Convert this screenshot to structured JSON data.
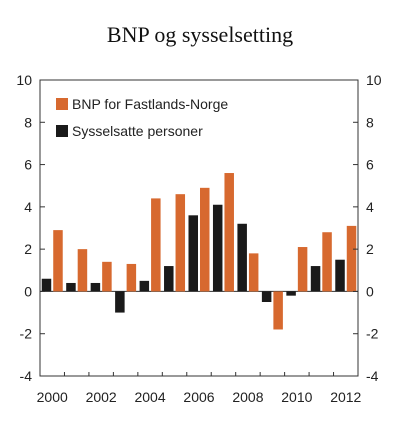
{
  "chart_data": {
    "type": "bar",
    "title": "BNP og sysselsetting",
    "xlabel": "",
    "ylabel": "",
    "ylim": [
      -4,
      10
    ],
    "yticks": [
      -4,
      -2,
      0,
      2,
      4,
      6,
      8,
      10
    ],
    "xtick_labels": [
      "2000",
      "2002",
      "2004",
      "2006",
      "2008",
      "2010",
      "2012"
    ],
    "categories": [
      "2000",
      "2001",
      "2002",
      "2003",
      "2004",
      "2005",
      "2006",
      "2007",
      "2008",
      "2009",
      "2010",
      "2011",
      "2012"
    ],
    "legend_position": "top-left",
    "grid": false,
    "series": [
      {
        "name": "BNP for Fastlands-Norge",
        "color": "#d7692f",
        "values": [
          2.9,
          2.0,
          1.4,
          1.3,
          4.4,
          4.6,
          4.9,
          5.6,
          1.8,
          -1.8,
          2.1,
          2.8,
          3.1
        ]
      },
      {
        "name": "Sysselsatte personer",
        "color": "#1a1a1a",
        "values": [
          0.6,
          0.4,
          0.4,
          -1.0,
          0.5,
          1.2,
          3.6,
          4.1,
          3.2,
          -0.5,
          -0.2,
          1.2,
          1.5
        ]
      }
    ]
  }
}
